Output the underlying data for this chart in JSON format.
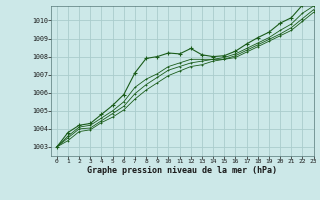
{
  "title": "Graphe pression niveau de la mer (hPa)",
  "background_color": "#cce8e8",
  "grid_color": "#aacccc",
  "line_color": "#1a5c1a",
  "xlim": [
    -0.5,
    23
  ],
  "ylim": [
    1002.5,
    1010.8
  ],
  "yticks": [
    1003,
    1004,
    1005,
    1006,
    1007,
    1008,
    1009,
    1010
  ],
  "xticks": [
    0,
    1,
    2,
    3,
    4,
    5,
    6,
    7,
    8,
    9,
    10,
    11,
    12,
    13,
    14,
    15,
    16,
    17,
    18,
    19,
    20,
    21,
    22,
    23
  ],
  "series": [
    [
      1003.0,
      1003.8,
      1004.2,
      1004.3,
      1004.8,
      1005.3,
      1005.9,
      1007.1,
      1007.9,
      1008.0,
      1008.2,
      1008.15,
      1008.45,
      1008.1,
      1008.0,
      1008.05,
      1008.3,
      1008.7,
      1009.05,
      1009.35,
      1009.85,
      1010.15,
      1010.85,
      1011.05
    ],
    [
      1003.0,
      1003.6,
      1004.1,
      1004.2,
      1004.6,
      1005.0,
      1005.5,
      1006.3,
      1006.75,
      1007.05,
      1007.45,
      1007.65,
      1007.85,
      1007.85,
      1007.85,
      1007.95,
      1008.15,
      1008.45,
      1008.75,
      1009.05,
      1009.45,
      1009.8,
      1010.4,
      1010.8
    ],
    [
      1003.0,
      1003.5,
      1004.0,
      1004.05,
      1004.45,
      1004.85,
      1005.25,
      1005.95,
      1006.45,
      1006.85,
      1007.25,
      1007.45,
      1007.65,
      1007.75,
      1007.85,
      1007.85,
      1008.05,
      1008.35,
      1008.65,
      1008.95,
      1009.25,
      1009.6,
      1010.1,
      1010.6
    ],
    [
      1003.0,
      1003.35,
      1003.85,
      1003.95,
      1004.35,
      1004.65,
      1005.05,
      1005.65,
      1006.15,
      1006.55,
      1006.95,
      1007.2,
      1007.45,
      1007.55,
      1007.75,
      1007.85,
      1007.95,
      1008.25,
      1008.55,
      1008.85,
      1009.15,
      1009.45,
      1009.95,
      1010.45
    ]
  ]
}
